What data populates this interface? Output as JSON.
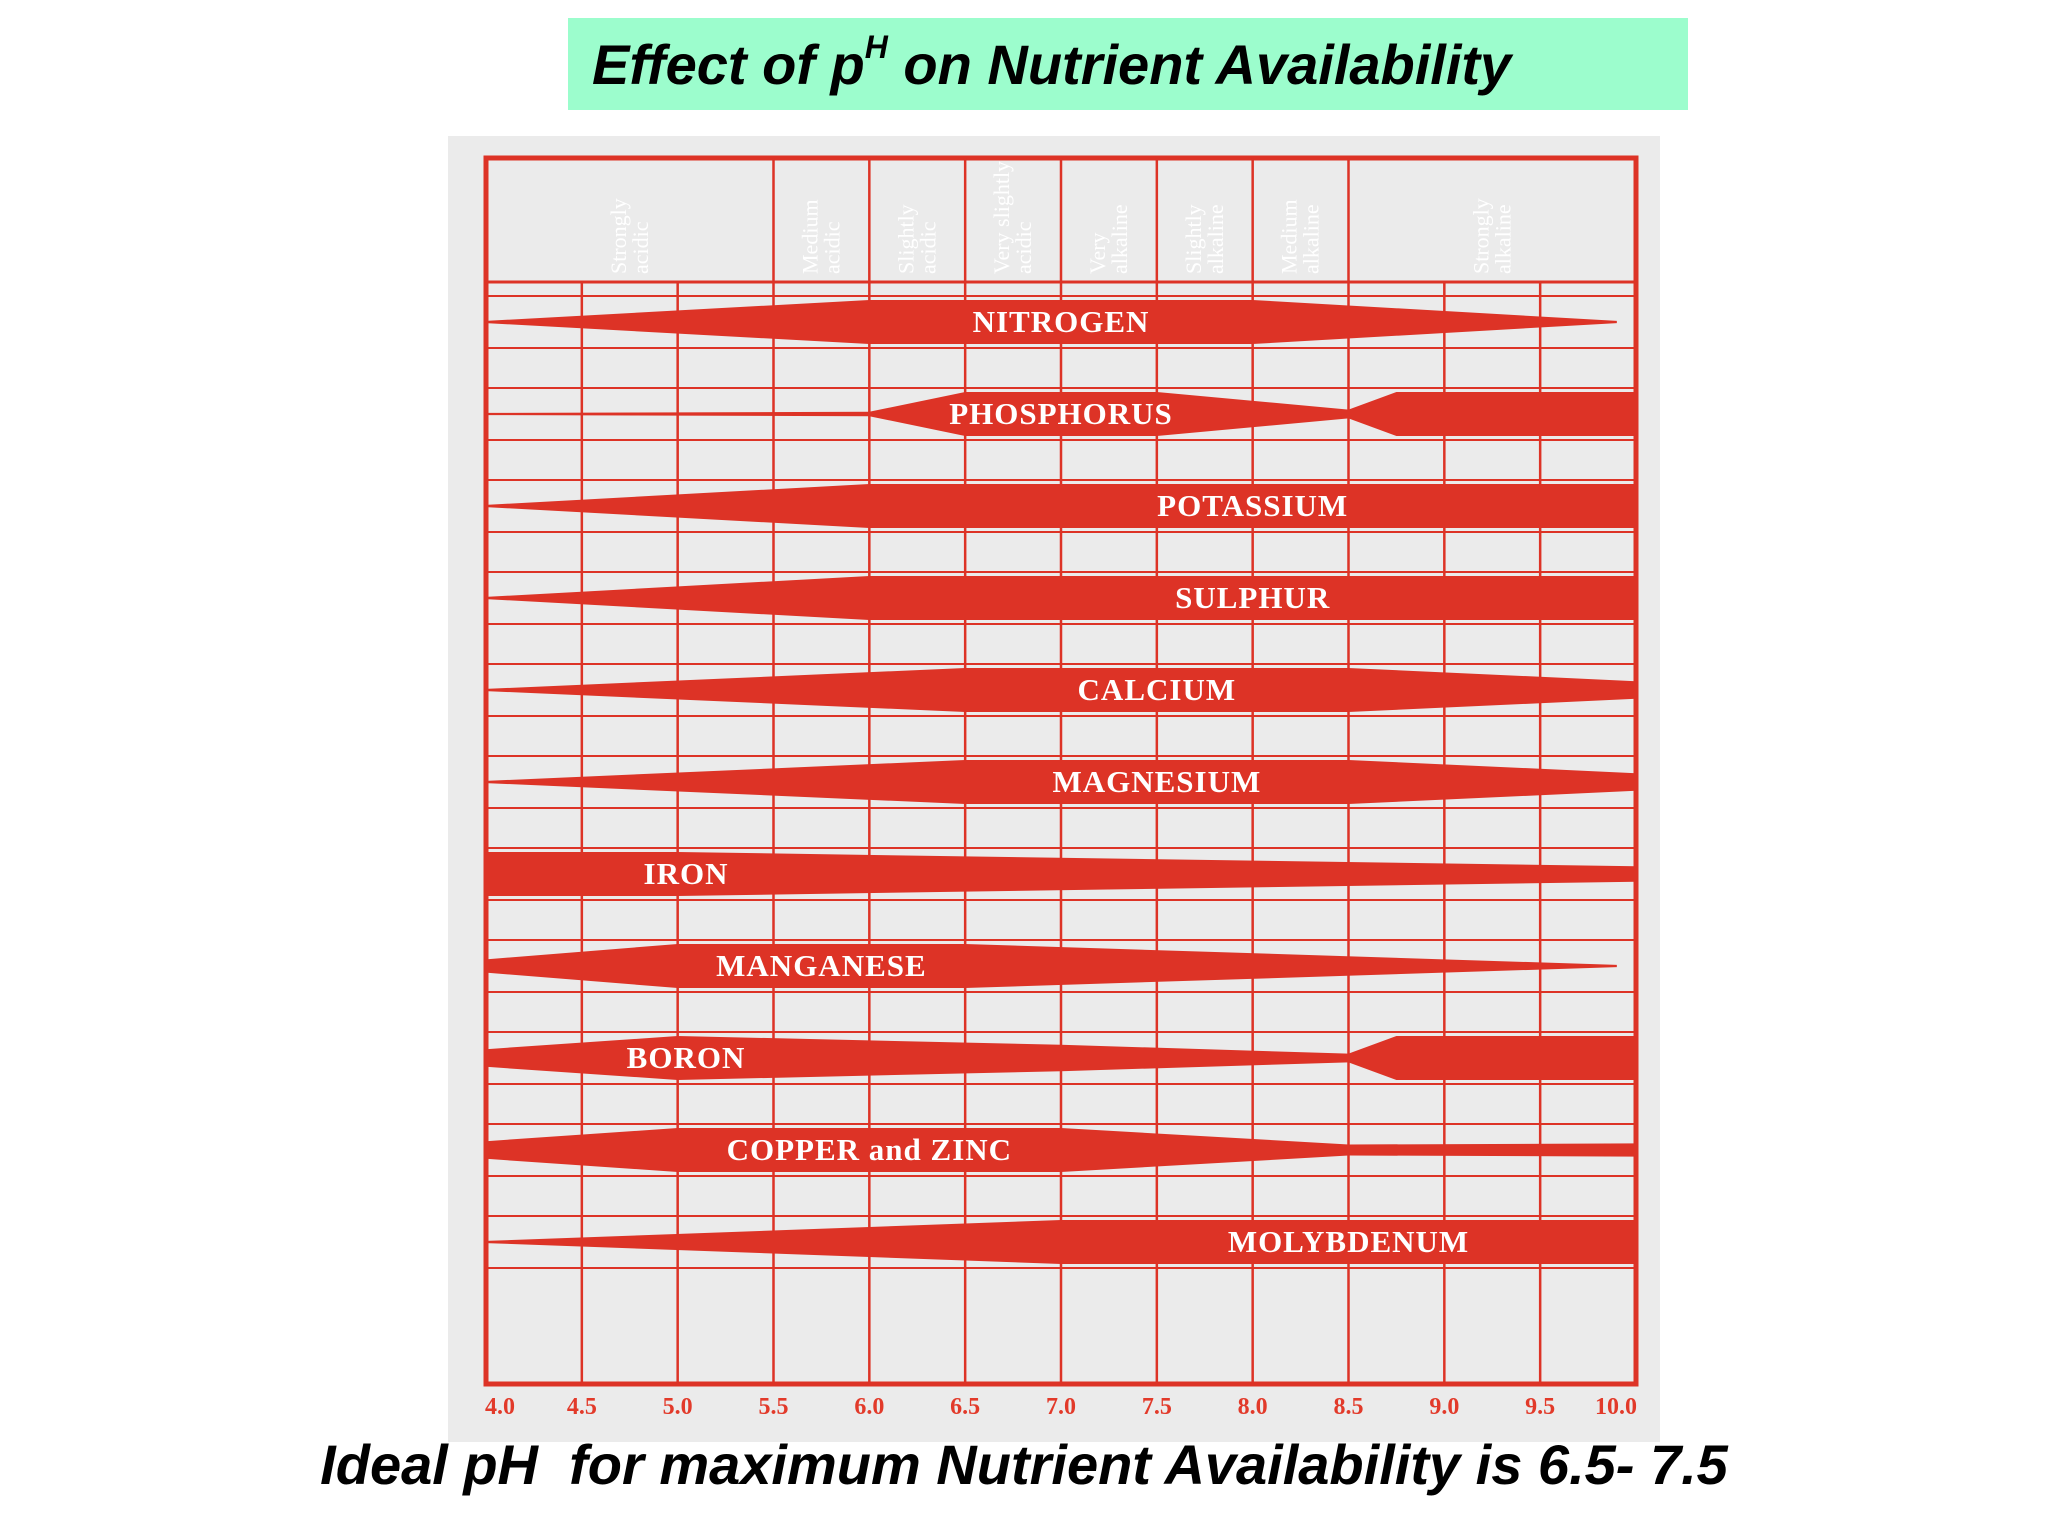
{
  "title": {
    "prefix": "Effect of p",
    "superscript": "H",
    "suffix": " on Nutrient Availability"
  },
  "footer": "Ideal pH  for maximum Nutrient Availability is 6.5- 7.5",
  "colors": {
    "title_bg": "#9cfdcd",
    "chart_red": "#dd3326",
    "chart_bg": "#ebebeb"
  },
  "chart_data": {
    "type": "area",
    "title": "",
    "xlabel": "",
    "ylabel": "",
    "xlim": [
      4.0,
      10.0
    ],
    "x_ticks": [
      "4.0",
      "4.5",
      "5.0",
      "5.5",
      "6.0",
      "6.5",
      "7.0",
      "7.5",
      "8.0",
      "8.5",
      "9.0",
      "9.5",
      "10.0"
    ],
    "grid": true,
    "zones": [
      {
        "label": "Strongly\nacidic",
        "from": 4.0,
        "to": 5.5
      },
      {
        "label": "Medium\nacidic",
        "from": 5.5,
        "to": 6.0
      },
      {
        "label": "Slightly\nacidic",
        "from": 6.0,
        "to": 6.5
      },
      {
        "label": "Very slightly\nacidic",
        "from": 6.5,
        "to": 7.0
      },
      {
        "label": "Very\nalkaline",
        "from": 7.0,
        "to": 7.5
      },
      {
        "label": "Slightly\nalkaline",
        "from": 7.5,
        "to": 8.0
      },
      {
        "label": "Medium\nalkaline",
        "from": 8.0,
        "to": 8.5
      },
      {
        "label": "Strongly\nalkaline",
        "from": 8.5,
        "to": 10.0
      }
    ],
    "series": [
      {
        "name": "NITROGEN",
        "x": [
          4.0,
          6.0,
          8.0,
          9.9
        ],
        "values": [
          0.05,
          1,
          1,
          0.05
        ]
      },
      {
        "name": "PHOSPHORUS",
        "x": [
          4.0,
          6.0,
          6.5,
          7.5,
          8.5,
          8.75,
          10.0
        ],
        "values": [
          0.05,
          0.1,
          1,
          1,
          0.2,
          1,
          1
        ]
      },
      {
        "name": "POTASSIUM",
        "x": [
          4.0,
          6.0,
          10.0
        ],
        "values": [
          0.05,
          1,
          1
        ]
      },
      {
        "name": "SULPHUR",
        "x": [
          4.0,
          6.0,
          10.0
        ],
        "values": [
          0.05,
          1,
          1
        ]
      },
      {
        "name": "CALCIUM",
        "x": [
          4.0,
          6.5,
          8.5,
          10.0
        ],
        "values": [
          0.05,
          1,
          1,
          0.4
        ]
      },
      {
        "name": "MAGNESIUM",
        "x": [
          4.0,
          6.5,
          8.5,
          10.0
        ],
        "values": [
          0.05,
          1,
          1,
          0.4
        ]
      },
      {
        "name": "IRON",
        "x": [
          4.0,
          5.0,
          6.5,
          10.0
        ],
        "values": [
          1,
          1,
          0.8,
          0.35
        ]
      },
      {
        "name": "MANGANESE",
        "x": [
          4.0,
          5.0,
          6.5,
          9.9
        ],
        "values": [
          0.3,
          1,
          1,
          0.05
        ]
      },
      {
        "name": "BORON",
        "x": [
          4.0,
          5.0,
          7.0,
          8.5,
          8.75,
          10.0
        ],
        "values": [
          0.4,
          1,
          0.6,
          0.2,
          1,
          1
        ]
      },
      {
        "name": "COPPER and ZINC",
        "x": [
          4.0,
          5.0,
          7.0,
          8.5,
          10.0
        ],
        "values": [
          0.4,
          1,
          1,
          0.25,
          0.3
        ]
      },
      {
        "name": "MOLYBDENUM",
        "x": [
          4.0,
          7.0,
          10.0
        ],
        "values": [
          0.05,
          1,
          1
        ]
      }
    ]
  }
}
